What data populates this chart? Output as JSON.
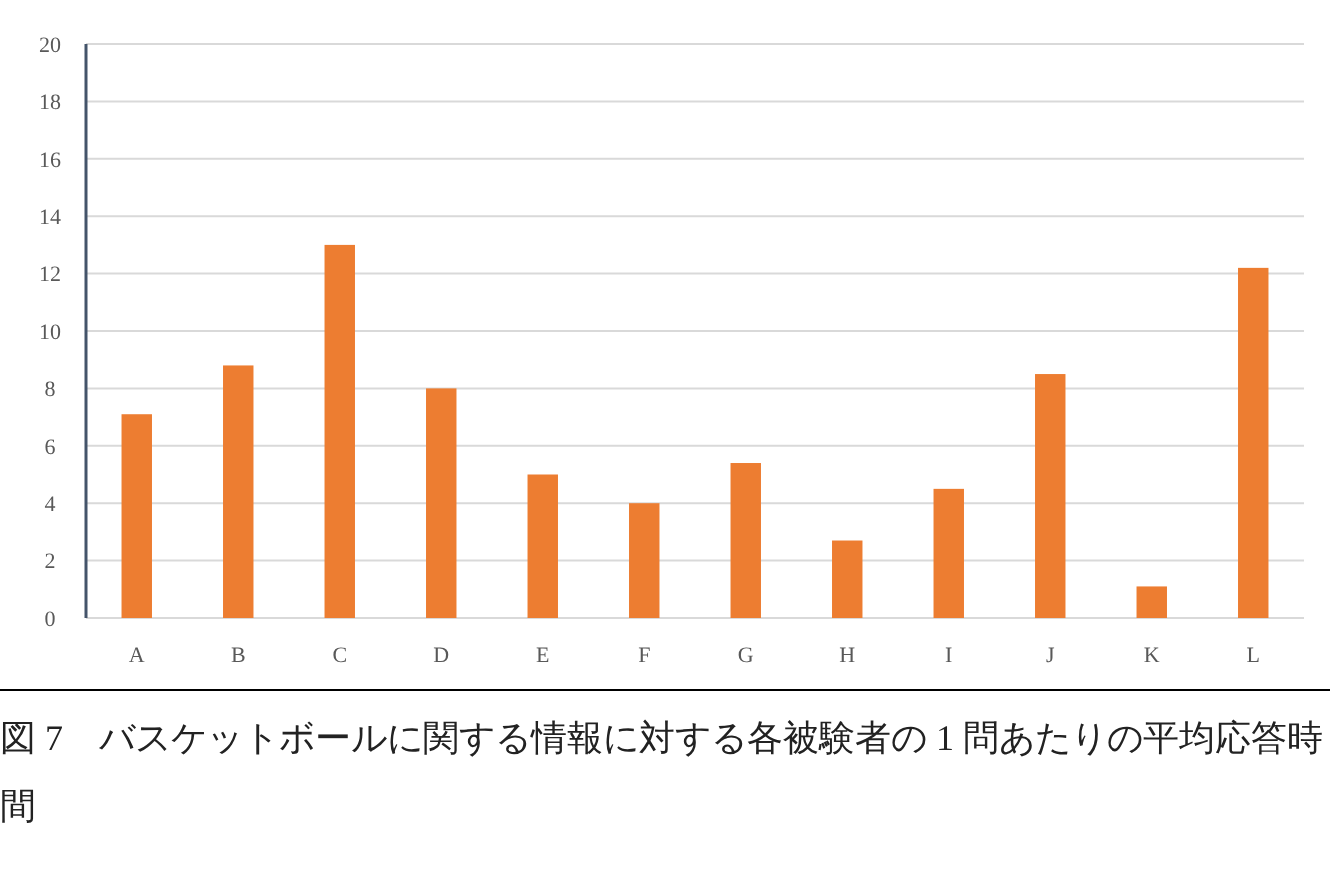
{
  "chart_data": {
    "type": "bar",
    "categories": [
      "A",
      "B",
      "C",
      "D",
      "E",
      "F",
      "G",
      "H",
      "I",
      "J",
      "K",
      "L"
    ],
    "values": [
      7.1,
      8.8,
      13.0,
      8.0,
      5.0,
      4.0,
      5.4,
      2.7,
      4.5,
      8.5,
      1.1,
      12.2
    ],
    "color": "#ed7d31",
    "ylim": [
      0,
      20
    ],
    "yticks": [
      0,
      2,
      4,
      6,
      8,
      10,
      12,
      14,
      16,
      18,
      20
    ],
    "grid": "y",
    "annotations": [
      "図 7　バスケットボールに関する情報に対する各被験者の 1 問あたりの平均応答時間"
    ]
  }
}
